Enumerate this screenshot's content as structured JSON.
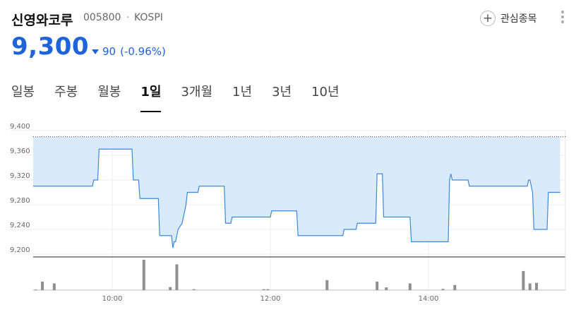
{
  "stock": {
    "name": "신영와코루",
    "code": "005800",
    "separator": "·",
    "market": "KOSPI",
    "price": "9,300",
    "change": "90",
    "change_pct": "(-0.96%)",
    "direction": "down"
  },
  "actions": {
    "watchlist_label": "관심종목"
  },
  "tabs": [
    {
      "label": "일봉",
      "active": false
    },
    {
      "label": "주봉",
      "active": false
    },
    {
      "label": "월봉",
      "active": false
    },
    {
      "label": "1일",
      "active": true
    },
    {
      "label": "3개월",
      "active": false
    },
    {
      "label": "1년",
      "active": false
    },
    {
      "label": "3년",
      "active": false
    },
    {
      "label": "10년",
      "active": false
    }
  ],
  "colors": {
    "accent_blue": "#1f63d9",
    "line": "#3a8ad9",
    "area_fill": "#d9eafb",
    "volume_bar": "#8f8f8f"
  },
  "chart_data": {
    "type": "line",
    "ylim": [
      9200,
      9400
    ],
    "y_ticks": [
      "9,400",
      "9,360",
      "9,320",
      "9,280",
      "9,240",
      "9,200"
    ],
    "x_ticks": [
      "10:00",
      "12:00",
      "14:00"
    ],
    "time_range": [
      "09:00",
      "15:30"
    ],
    "prev_close": 9390,
    "price_series": {
      "x": [
        "09:00",
        "09:45",
        "09:46",
        "09:49",
        "09:50",
        "10:15",
        "10:16",
        "10:20",
        "10:21",
        "10:35",
        "10:36",
        "10:45",
        "10:46",
        "10:47",
        "10:48",
        "10:50",
        "10:53",
        "10:54",
        "10:55",
        "10:56",
        "10:57",
        "11:00",
        "11:05",
        "11:06",
        "11:25",
        "11:26",
        "11:30",
        "11:31",
        "11:45",
        "11:46",
        "12:00",
        "12:01",
        "12:20",
        "12:21",
        "12:40",
        "12:41",
        "12:55",
        "12:56",
        "13:05",
        "13:06",
        "13:20",
        "13:21",
        "13:25",
        "13:26",
        "13:46",
        "13:47",
        "14:15",
        "14:16",
        "14:17",
        "14:18",
        "14:19",
        "14:30",
        "14:31",
        "15:15",
        "15:16",
        "15:17",
        "15:18",
        "15:19",
        "15:20",
        "15:30",
        "15:31",
        "15:40"
      ],
      "values": [
        9310,
        9310,
        9320,
        9320,
        9370,
        9370,
        9320,
        9320,
        9290,
        9290,
        9230,
        9230,
        9210,
        9220,
        9220,
        9240,
        9250,
        9260,
        9270,
        9280,
        9300,
        9300,
        9300,
        9310,
        9310,
        9250,
        9250,
        9260,
        9260,
        9260,
        9260,
        9270,
        9270,
        9230,
        9230,
        9230,
        9230,
        9240,
        9240,
        9250,
        9250,
        9330,
        9330,
        9260,
        9260,
        9220,
        9220,
        9320,
        9330,
        9320,
        9320,
        9320,
        9310,
        9310,
        9320,
        9320,
        9310,
        9300,
        9240,
        9240,
        9300,
        9300
      ]
    },
    "volume": [
      {
        "time": "09:02",
        "value": 2
      },
      {
        "time": "09:07",
        "value": 28
      },
      {
        "time": "09:16",
        "value": 22
      },
      {
        "time": "10:24",
        "value": 100
      },
      {
        "time": "10:44",
        "value": 10
      },
      {
        "time": "10:49",
        "value": 85
      },
      {
        "time": "11:02",
        "value": 3
      },
      {
        "time": "11:55",
        "value": 3
      },
      {
        "time": "11:58",
        "value": 3
      },
      {
        "time": "12:43",
        "value": 33
      },
      {
        "time": "13:21",
        "value": 28
      },
      {
        "time": "13:28",
        "value": 9
      },
      {
        "time": "13:46",
        "value": 22
      },
      {
        "time": "14:11",
        "value": 4
      },
      {
        "time": "14:20",
        "value": 17
      },
      {
        "time": "15:12",
        "value": 63
      },
      {
        "time": "15:17",
        "value": 22
      },
      {
        "time": "15:22",
        "value": 24
      }
    ]
  }
}
